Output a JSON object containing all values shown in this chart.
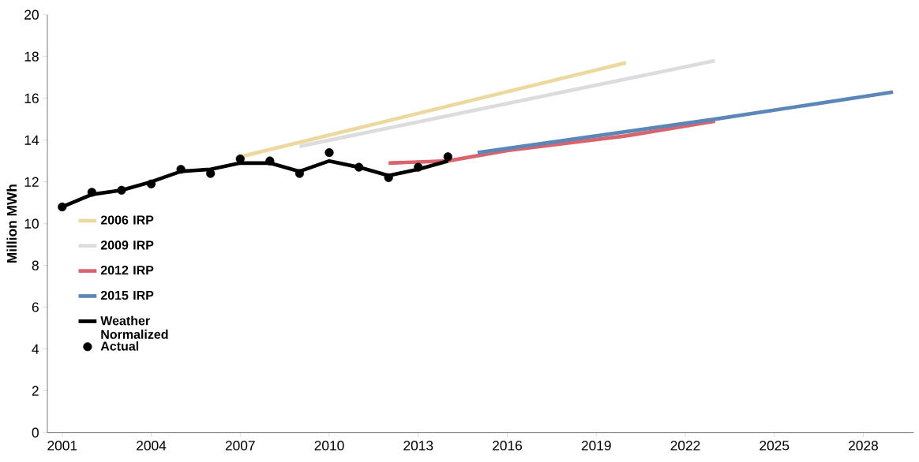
{
  "chart_data": {
    "type": "line",
    "ylabel": "Million MWh",
    "xlim": [
      2000.5,
      2029.7
    ],
    "xticks": [
      2001,
      2004,
      2007,
      2010,
      2013,
      2016,
      2019,
      2022,
      2025,
      2028
    ],
    "ylim": [
      0,
      20
    ],
    "yticks": [
      0,
      2,
      4,
      6,
      8,
      10,
      12,
      14,
      16,
      18,
      20
    ],
    "legend": "left",
    "grid": false,
    "series": [
      {
        "name": "2006 IRP",
        "color": "#ecd9a0",
        "x": [
          2007,
          2020
        ],
        "values": [
          13.2,
          17.7
        ]
      },
      {
        "name": "2009 IRP",
        "color": "#dcdcdc",
        "x": [
          2009,
          2023
        ],
        "values": [
          13.7,
          17.8
        ]
      },
      {
        "name": "2012 IRP",
        "color": "#d9646e",
        "x": [
          2012,
          2014,
          2016,
          2020,
          2023
        ],
        "values": [
          12.9,
          13.0,
          13.5,
          14.2,
          14.9
        ]
      },
      {
        "name": "2015 IRP",
        "color": "#5b86b8",
        "x": [
          2015,
          2019,
          2023,
          2029
        ],
        "values": [
          13.4,
          14.2,
          15.0,
          16.3
        ]
      },
      {
        "name": "Weather Normalized",
        "color": "#000000",
        "x": [
          2001,
          2002,
          2003,
          2004,
          2005,
          2006,
          2007,
          2008,
          2009,
          2010,
          2011,
          2012,
          2013,
          2014
        ],
        "values": [
          10.8,
          11.4,
          11.6,
          12.0,
          12.5,
          12.6,
          12.9,
          12.9,
          12.5,
          13.0,
          12.7,
          12.3,
          12.6,
          13.0
        ]
      },
      {
        "name": "Actual",
        "type": "scatter",
        "marker": "circle",
        "color": "#000000",
        "x": [
          2001,
          2002,
          2003,
          2004,
          2005,
          2006,
          2007,
          2008,
          2009,
          2010,
          2011,
          2012,
          2013,
          2014
        ],
        "values": [
          10.8,
          11.5,
          11.6,
          11.9,
          12.6,
          12.4,
          13.1,
          13.0,
          12.4,
          13.4,
          12.7,
          12.2,
          12.7,
          13.2
        ]
      }
    ]
  }
}
